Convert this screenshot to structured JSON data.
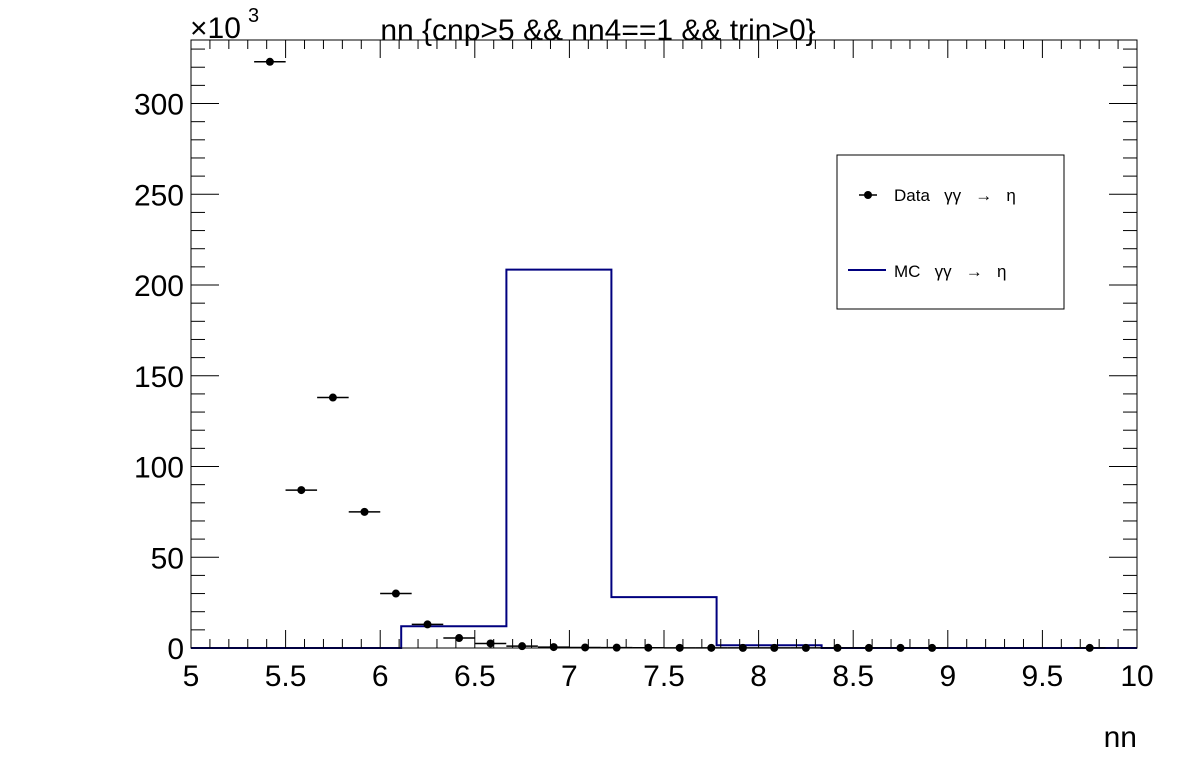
{
  "chart_data": {
    "type": "line",
    "title": "nn {cnp>5 && nn4==1 && trin>0}",
    "xlabel": "nn",
    "ylabel": "",
    "y_multiplier": "×10",
    "y_multiplier_exp": "3",
    "xlim": [
      5,
      10
    ],
    "ylim": [
      0,
      335
    ],
    "x_ticks": [
      5,
      5.5,
      6,
      6.5,
      7,
      7.5,
      8,
      8.5,
      9,
      9.5,
      10
    ],
    "x_tick_labels": [
      "5",
      "5.5",
      "6",
      "6.5",
      "7",
      "7.5",
      "8",
      "8.5",
      "9",
      "9.5",
      "10"
    ],
    "y_ticks": [
      0,
      50,
      100,
      150,
      200,
      250,
      300
    ],
    "y_tick_labels": [
      "0",
      "50",
      "100",
      "150",
      "200",
      "250",
      "300"
    ],
    "grid": false,
    "legend_position": "top-right",
    "series": [
      {
        "name": "Data   γγ   →   η",
        "style": "points-with-x-errors",
        "color": "#000000",
        "bin_half_width": 0.0833,
        "x": [
          5.417,
          5.583,
          5.75,
          5.917,
          6.083,
          6.25,
          6.417,
          6.583,
          6.75,
          6.917,
          7.083,
          7.25,
          7.417,
          7.583,
          7.75,
          7.917,
          8.083,
          8.25,
          8.417,
          8.583,
          8.75,
          8.917,
          9.75
        ],
        "y": [
          323,
          87,
          138,
          75,
          30,
          13,
          5.5,
          2.5,
          1,
          0.5,
          0.3,
          0.2,
          0.15,
          0.1,
          0.1,
          0.05,
          0.05,
          0.05,
          0.05,
          0.05,
          0.05,
          0.05,
          0.05
        ]
      },
      {
        "name": "MC   γγ   →   η",
        "style": "step-histogram",
        "color": "#00007f",
        "bin_edges": [
          5,
          6.111,
          6.667,
          7.222,
          7.778,
          8.333,
          10
        ],
        "values": [
          0,
          12,
          208.5,
          28,
          1.5,
          0
        ]
      }
    ]
  }
}
